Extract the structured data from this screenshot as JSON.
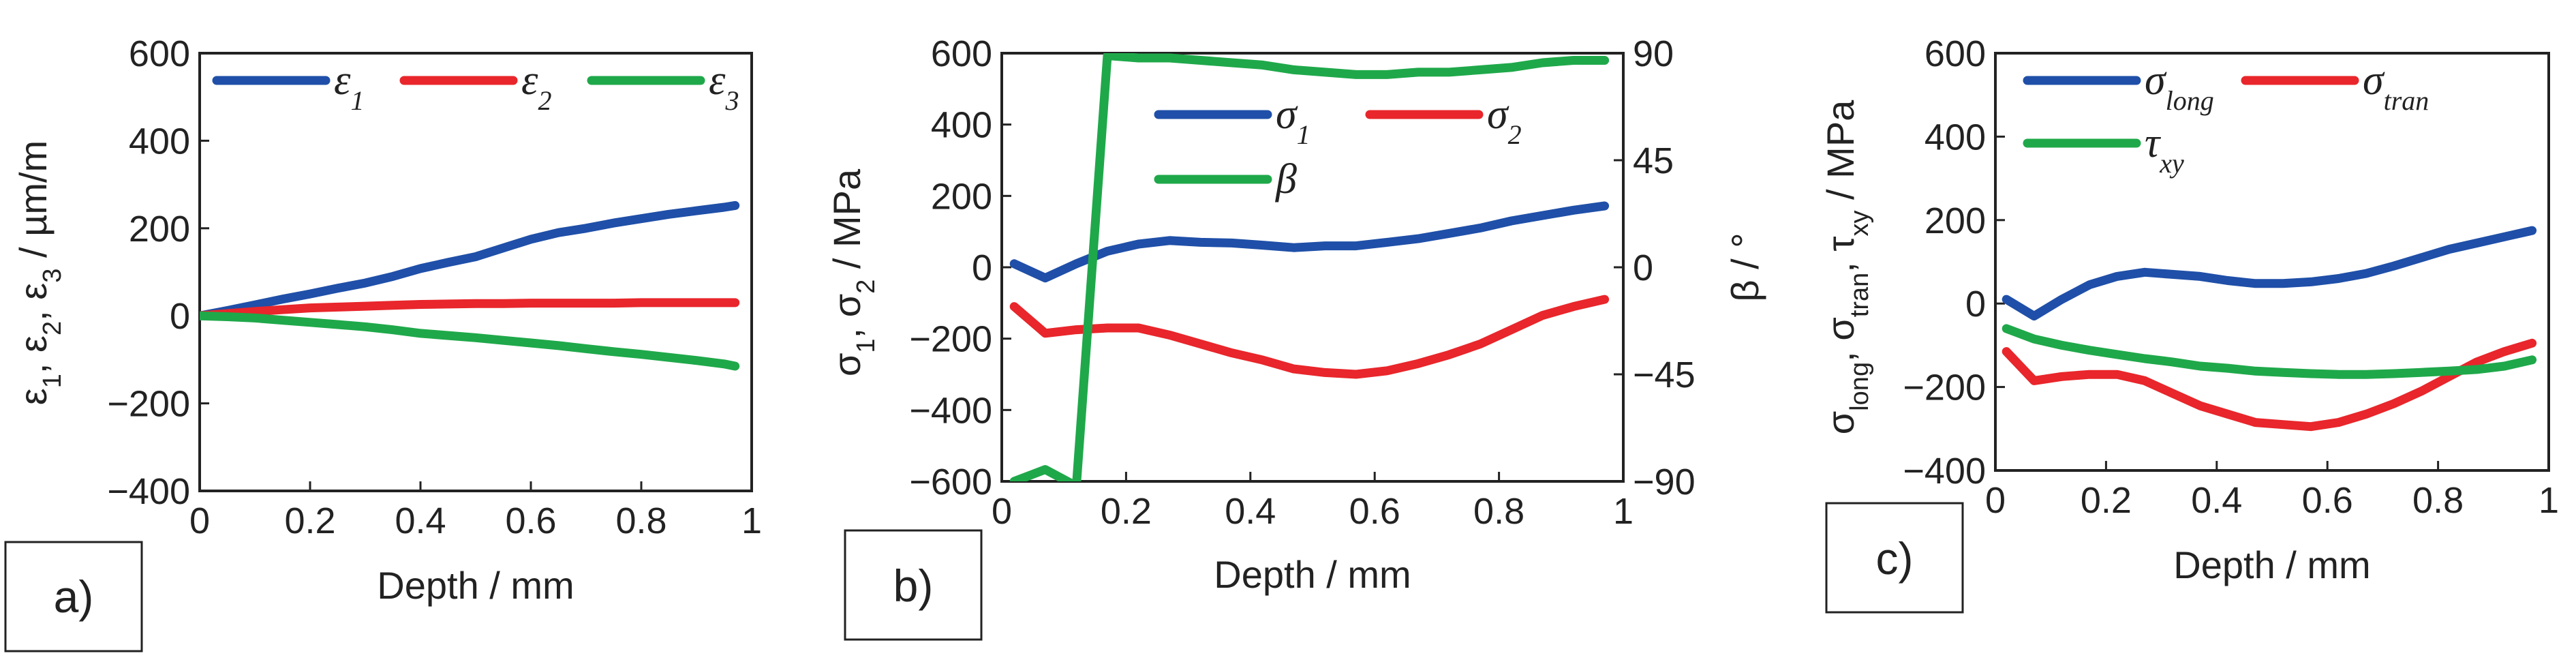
{
  "colors": {
    "blue": "#1f4fa8",
    "red": "#e8262b",
    "green": "#1fa84a"
  },
  "panels": [
    {
      "tag": "a)",
      "xlabel": "Depth / mm",
      "ylabel_parts": [
        [
          "ε",
          ""
        ],
        [
          "1",
          "sub"
        ],
        [
          ", ε",
          ""
        ],
        [
          "2",
          "sub"
        ],
        [
          ", ε",
          ""
        ],
        [
          "3",
          "sub"
        ],
        [
          " / µm/m",
          ""
        ]
      ],
      "xticks": [
        "0",
        "0.2",
        "0.4",
        "0.6",
        "0.8",
        "1"
      ],
      "yticks": [
        "600",
        "400",
        "200",
        "0",
        "−200",
        "−400"
      ],
      "legend": [
        {
          "name": "ε",
          "sub": "1",
          "color": "blue"
        },
        {
          "name": "ε",
          "sub": "2",
          "color": "red"
        },
        {
          "name": "ε",
          "sub": "3",
          "color": "green"
        }
      ]
    },
    {
      "tag": "b)",
      "xlabel": "Depth / mm",
      "ylabel_parts": [
        [
          "σ",
          ""
        ],
        [
          "1",
          "sub"
        ],
        [
          ", σ",
          ""
        ],
        [
          "2",
          "sub"
        ],
        [
          " / MPa",
          ""
        ]
      ],
      "y2label": "β / °",
      "xticks": [
        "0",
        "0.2",
        "0.4",
        "0.6",
        "0.8",
        "1"
      ],
      "yticks": [
        "600",
        "400",
        "200",
        "0",
        "−200",
        "−400",
        "−600"
      ],
      "y2ticks": [
        "90",
        "45",
        "0",
        "−45",
        "−90"
      ],
      "legend": [
        {
          "name": "σ",
          "sub": "1",
          "color": "blue"
        },
        {
          "name": "σ",
          "sub": "2",
          "color": "red"
        },
        {
          "name": "β",
          "sub": "",
          "color": "green"
        }
      ]
    },
    {
      "tag": "c)",
      "xlabel": "Depth / mm",
      "ylabel_parts": [
        [
          "σ",
          ""
        ],
        [
          "long",
          "sub"
        ],
        [
          ", σ",
          ""
        ],
        [
          "tran",
          "sub"
        ],
        [
          ", τ",
          ""
        ],
        [
          "xy",
          "sub"
        ],
        [
          " / MPa",
          ""
        ]
      ],
      "xticks": [
        "0",
        "0.2",
        "0.4",
        "0.6",
        "0.8",
        "1"
      ],
      "yticks": [
        "600",
        "400",
        "200",
        "0",
        "−200",
        "−400"
      ],
      "legend": [
        {
          "name": "σ",
          "sub": "long",
          "color": "blue"
        },
        {
          "name": "σ",
          "sub": "tran",
          "color": "red"
        },
        {
          "name": "τ",
          "sub": "xy",
          "color": "green"
        }
      ]
    }
  ],
  "chart_data": [
    {
      "type": "line",
      "title": "a)",
      "xlabel": "Depth / mm",
      "ylabel": "ε1, ε2, ε3 / µm/m",
      "xlim": [
        0,
        1
      ],
      "ylim": [
        -400,
        600
      ],
      "x": [
        0,
        0.05,
        0.1,
        0.15,
        0.2,
        0.25,
        0.3,
        0.35,
        0.4,
        0.45,
        0.5,
        0.55,
        0.6,
        0.65,
        0.7,
        0.75,
        0.8,
        0.85,
        0.9,
        0.95,
        0.97
      ],
      "series": [
        {
          "name": "ε1",
          "color": "blue",
          "values": [
            0,
            12,
            25,
            38,
            50,
            63,
            75,
            90,
            108,
            122,
            135,
            155,
            175,
            190,
            200,
            212,
            222,
            232,
            240,
            248,
            252
          ]
        },
        {
          "name": "ε2",
          "color": "red",
          "values": [
            0,
            5,
            10,
            14,
            18,
            20,
            22,
            24,
            26,
            27,
            28,
            28,
            29,
            29,
            29,
            29,
            30,
            30,
            30,
            30,
            30
          ]
        },
        {
          "name": "ε3",
          "color": "green",
          "values": [
            0,
            -2,
            -5,
            -10,
            -15,
            -20,
            -25,
            -32,
            -40,
            -45,
            -50,
            -56,
            -62,
            -68,
            -75,
            -82,
            -88,
            -95,
            -102,
            -110,
            -115
          ]
        }
      ]
    },
    {
      "type": "line",
      "title": "b)",
      "xlabel": "Depth / mm",
      "ylabel": "σ1, σ2 / MPa",
      "y2label": "β / °",
      "xlim": [
        0,
        1
      ],
      "ylim": [
        -600,
        600
      ],
      "y2lim": [
        -90,
        90
      ],
      "series": [
        {
          "name": "σ1",
          "color": "blue",
          "axis": "left",
          "x": [
            0.02,
            0.07,
            0.12,
            0.17,
            0.22,
            0.27,
            0.32,
            0.37,
            0.42,
            0.47,
            0.52,
            0.57,
            0.62,
            0.67,
            0.72,
            0.77,
            0.82,
            0.87,
            0.92,
            0.97
          ],
          "values": [
            10,
            -30,
            10,
            45,
            65,
            75,
            70,
            68,
            62,
            55,
            60,
            60,
            70,
            80,
            95,
            110,
            130,
            145,
            160,
            172
          ]
        },
        {
          "name": "σ2",
          "color": "red",
          "axis": "left",
          "x": [
            0.02,
            0.07,
            0.12,
            0.17,
            0.22,
            0.27,
            0.32,
            0.37,
            0.42,
            0.47,
            0.52,
            0.57,
            0.62,
            0.67,
            0.72,
            0.77,
            0.82,
            0.87,
            0.92,
            0.97
          ],
          "values": [
            -110,
            -185,
            -175,
            -170,
            -170,
            -190,
            -215,
            -240,
            -260,
            -285,
            -295,
            -300,
            -290,
            -270,
            -245,
            -215,
            -175,
            -135,
            -110,
            -90
          ]
        },
        {
          "name": "β",
          "color": "green",
          "axis": "right",
          "x": [
            0.02,
            0.07,
            0.12,
            0.17,
            0.22,
            0.27,
            0.32,
            0.37,
            0.42,
            0.47,
            0.52,
            0.57,
            0.62,
            0.67,
            0.72,
            0.77,
            0.82,
            0.87,
            0.92,
            0.97
          ],
          "values": [
            -90,
            -85,
            -92,
            89,
            88,
            88,
            87,
            86,
            85,
            83,
            82,
            81,
            81,
            82,
            82,
            83,
            84,
            86,
            87,
            87
          ]
        }
      ]
    },
    {
      "type": "line",
      "title": "c)",
      "xlabel": "Depth / mm",
      "ylabel": "σlong, σtran, τxy / MPa",
      "xlim": [
        0,
        1
      ],
      "ylim": [
        -400,
        600
      ],
      "x": [
        0.02,
        0.07,
        0.12,
        0.17,
        0.22,
        0.27,
        0.32,
        0.37,
        0.42,
        0.47,
        0.52,
        0.57,
        0.62,
        0.67,
        0.72,
        0.77,
        0.82,
        0.87,
        0.92,
        0.97
      ],
      "series": [
        {
          "name": "σlong",
          "color": "blue",
          "values": [
            10,
            -30,
            10,
            45,
            65,
            75,
            70,
            65,
            55,
            48,
            48,
            52,
            60,
            72,
            90,
            110,
            130,
            145,
            160,
            175
          ]
        },
        {
          "name": "σtran",
          "color": "red",
          "values": [
            -115,
            -185,
            -175,
            -170,
            -170,
            -185,
            -215,
            -245,
            -265,
            -285,
            -290,
            -295,
            -285,
            -265,
            -240,
            -210,
            -175,
            -140,
            -115,
            -95
          ]
        },
        {
          "name": "τxy",
          "color": "green",
          "values": [
            -60,
            -85,
            -100,
            -112,
            -122,
            -132,
            -140,
            -150,
            -155,
            -162,
            -165,
            -168,
            -170,
            -170,
            -168,
            -165,
            -162,
            -158,
            -150,
            -135
          ]
        }
      ]
    }
  ]
}
